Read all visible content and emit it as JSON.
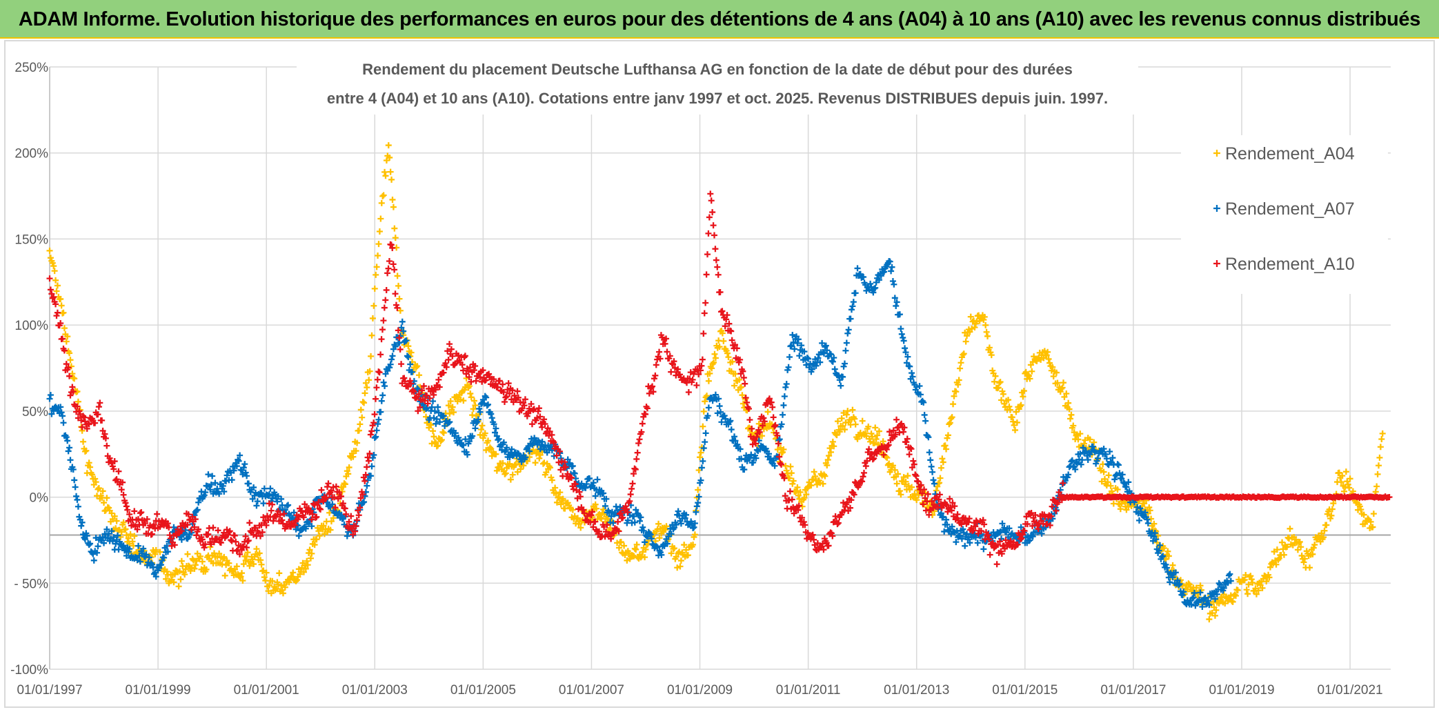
{
  "banner": {
    "title": "ADAM Informe. Evolution historique des performances en euros pour des détentions de 4 ans (A04) à 10 ans (A10) avec les revenus connus distribués",
    "background": "#92d07d"
  },
  "chart_data": {
    "type": "scatter",
    "title_line1": "Rendement du placement Deutsche Lufthansa AG en fonction de la date de début pour des durées",
    "title_line2": "entre 4 (A04) et 10 ans (A10). Cotations entre janv 1997 et oct. 2025. Revenus DISTRIBUES depuis juin. 1997.",
    "xlabel": "",
    "ylabel": "",
    "ylim": [
      -100,
      250
    ],
    "xlim": [
      1997.0,
      2021.75
    ],
    "y_ticks": [
      "250%",
      "200%",
      "150%",
      "100%",
      "50%",
      "0%",
      "- 50%",
      "-100%"
    ],
    "y_tick_values": [
      250,
      200,
      150,
      100,
      50,
      0,
      -50,
      -100
    ],
    "x_ticks": [
      "01/01/1997",
      "01/01/1999",
      "01/01/2001",
      "01/01/2003",
      "01/01/2005",
      "01/01/2007",
      "01/01/2009",
      "01/01/2011",
      "01/01/2013",
      "01/01/2015",
      "01/01/2017",
      "01/01/2019",
      "01/01/2021"
    ],
    "x_tick_values": [
      1997,
      1999,
      2001,
      2003,
      2005,
      2007,
      2009,
      2011,
      2013,
      2015,
      2017,
      2019,
      2021
    ],
    "reference_line": -22,
    "grid": true,
    "legend_position": "right",
    "series": [
      {
        "name": "Rendement_A04",
        "color": "#ffc000",
        "x": [
          1997.0,
          1997.15,
          1997.3,
          1997.5,
          1997.7,
          1998.0,
          1998.3,
          1998.6,
          1998.9,
          1999.2,
          1999.6,
          2000.0,
          2000.4,
          2000.8,
          2001.1,
          2001.4,
          2001.7,
          2002.0,
          2002.3,
          2002.6,
          2002.9,
          2003.1,
          2003.25,
          2003.5,
          2003.8,
          2004.1,
          2004.4,
          2004.7,
          2005.0,
          2005.3,
          2005.6,
          2005.9,
          2006.2,
          2006.5,
          2006.8,
          2007.1,
          2007.4,
          2007.7,
          2008.0,
          2008.3,
          2008.6,
          2008.9,
          2009.1,
          2009.4,
          2009.7,
          2010.0,
          2010.3,
          2010.6,
          2010.9,
          2011.2,
          2011.5,
          2011.8,
          2012.1,
          2012.4,
          2012.7,
          2013.0,
          2013.3,
          2013.6,
          2013.9,
          2014.2,
          2014.5,
          2014.8,
          2015.1,
          2015.4,
          2015.7,
          2016.0,
          2016.3,
          2016.6,
          2016.9,
          2017.2,
          2017.5,
          2017.8,
          2018.1,
          2018.4,
          2018.7,
          2019.0,
          2019.3,
          2019.6,
          2019.9,
          2020.2,
          2020.5,
          2020.8,
          2021.1,
          2021.4,
          2021.6
        ],
        "y": [
          140,
          120,
          95,
          60,
          15,
          0,
          -20,
          -35,
          -30,
          -48,
          -40,
          -30,
          -45,
          -30,
          -55,
          -50,
          -40,
          -20,
          -10,
          20,
          70,
          160,
          200,
          100,
          70,
          30,
          50,
          65,
          35,
          15,
          20,
          30,
          15,
          -5,
          -10,
          -5,
          -20,
          -35,
          -30,
          -15,
          -35,
          -25,
          60,
          95,
          70,
          30,
          40,
          20,
          0,
          10,
          35,
          50,
          40,
          30,
          10,
          0,
          -5,
          40,
          90,
          105,
          60,
          45,
          75,
          80,
          60,
          35,
          30,
          0,
          -5,
          -5,
          -30,
          -45,
          -55,
          -65,
          -60,
          -50,
          -55,
          -35,
          -20,
          -35,
          -25,
          10,
          0,
          -15,
          35
        ],
        "y_spread": 12
      },
      {
        "name": "Rendement_A07",
        "color": "#0070c0",
        "x": [
          1997.0,
          1997.2,
          1997.4,
          1997.6,
          1997.8,
          1998.1,
          1998.4,
          1998.7,
          1999.0,
          1999.3,
          1999.6,
          1999.9,
          2000.2,
          2000.5,
          2000.8,
          2001.1,
          2001.4,
          2001.7,
          2002.0,
          2002.3,
          2002.6,
          2002.9,
          2003.2,
          2003.5,
          2003.8,
          2004.1,
          2004.4,
          2004.7,
          2005.0,
          2005.3,
          2005.6,
          2005.9,
          2006.2,
          2006.5,
          2006.8,
          2007.1,
          2007.4,
          2007.7,
          2008.0,
          2008.3,
          2008.6,
          2008.9,
          2009.2,
          2009.5,
          2009.8,
          2010.1,
          2010.4,
          2010.7,
          2011.0,
          2011.3,
          2011.6,
          2011.9,
          2012.2,
          2012.5,
          2012.8,
          2013.1,
          2013.4,
          2013.7,
          2014.0,
          2014.3,
          2014.6,
          2014.9,
          2015.2,
          2015.5,
          2015.8,
          2016.1,
          2016.4,
          2016.6,
          2017.0,
          2017.3,
          2017.6,
          2017.9,
          2018.2,
          2018.5,
          2018.8
        ],
        "y": [
          55,
          50,
          20,
          -20,
          -30,
          -20,
          -30,
          -35,
          -45,
          -20,
          -20,
          10,
          5,
          20,
          0,
          0,
          -10,
          -20,
          0,
          -10,
          -20,
          10,
          70,
          100,
          60,
          45,
          40,
          30,
          60,
          30,
          25,
          30,
          30,
          20,
          10,
          5,
          -10,
          -10,
          -20,
          -30,
          -10,
          -15,
          60,
          45,
          20,
          30,
          20,
          90,
          80,
          90,
          70,
          130,
          120,
          140,
          80,
          55,
          -10,
          -25,
          -20,
          -25,
          -20,
          -25,
          -20,
          -10,
          15,
          25,
          25,
          20,
          0,
          -20,
          -40,
          -55,
          -60,
          -60,
          -45
        ],
        "y_spread": 10
      },
      {
        "name": "Rendement_A10",
        "color": "#e8141b",
        "x": [
          1997.0,
          1997.15,
          1997.3,
          1997.5,
          1997.7,
          1997.9,
          1998.1,
          1998.3,
          1998.5,
          1998.7,
          1998.9,
          1999.1,
          1999.3,
          1999.6,
          1999.9,
          2000.2,
          2000.5,
          2000.8,
          2001.1,
          2001.4,
          2001.7,
          2002.0,
          2002.3,
          2002.6,
          2002.9,
          2003.1,
          2003.3,
          2003.5,
          2003.8,
          2004.1,
          2004.4,
          2004.7,
          2005.0,
          2005.3,
          2005.6,
          2005.9,
          2006.2,
          2006.5,
          2006.8,
          2007.1,
          2007.4,
          2007.7,
          2008.0,
          2008.3,
          2008.6,
          2008.9,
          2009.05,
          2009.2,
          2009.4,
          2009.7,
          2010.0,
          2010.3,
          2010.6,
          2010.9,
          2011.2,
          2011.5,
          2011.8,
          2012.1,
          2012.4,
          2012.7,
          2013.0,
          2013.3,
          2013.6,
          2013.9,
          2014.2,
          2014.5,
          2014.8,
          2015.1,
          2015.4,
          2015.7
        ],
        "y": [
          125,
          110,
          80,
          50,
          40,
          50,
          20,
          5,
          -10,
          -10,
          -20,
          -15,
          -25,
          -10,
          -25,
          -20,
          -30,
          -20,
          -10,
          -15,
          -10,
          0,
          5,
          -20,
          20,
          80,
          150,
          70,
          55,
          60,
          85,
          75,
          70,
          65,
          60,
          50,
          35,
          20,
          0,
          -20,
          -20,
          0,
          50,
          90,
          70,
          70,
          80,
          180,
          110,
          80,
          35,
          60,
          0,
          -10,
          -30,
          -15,
          0,
          20,
          30,
          40,
          15,
          -5,
          0,
          -15,
          -15,
          -30,
          -30,
          -15,
          -15,
          0
        ],
        "y_spread": 12
      }
    ],
    "flat_segment": {
      "series": "Rendement_A10",
      "x_start": 2015.7,
      "x_end": 2021.75,
      "y": 0
    }
  }
}
